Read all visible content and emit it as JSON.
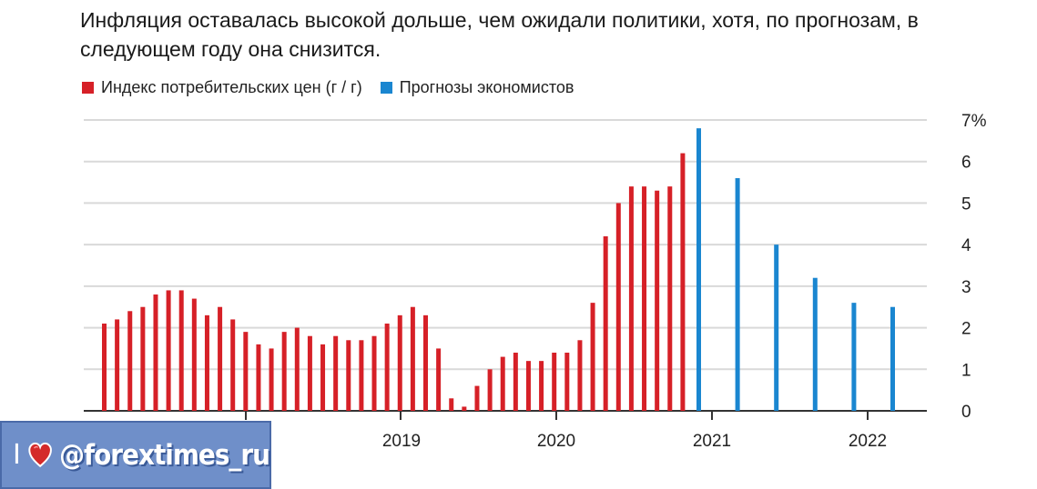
{
  "title": "Инфляция оставалась высокой дольше, чем ожидали политики, хотя, по прогнозам, в следующем году она снизится.",
  "legend": {
    "cpi": "Индекс потребительских цен (г / г)",
    "forecast": "Прогнозы экономистов"
  },
  "colors": {
    "cpi": "#d62027",
    "forecast": "#1a86d0",
    "grid": "#d9d9d9",
    "axis": "#333333"
  },
  "watermark": {
    "i": "I",
    "handle": "@forextimes_ru",
    "heart": "heart-icon"
  },
  "chart_data": {
    "type": "bar",
    "ylim": [
      0,
      7
    ],
    "yticks": [
      "0",
      "1",
      "2",
      "3",
      "4",
      "5",
      "6",
      "7%"
    ],
    "xticks": [
      "2019",
      "2020",
      "2021",
      "2022"
    ],
    "grid": true,
    "series": [
      {
        "name": "Индекс потребительских цен (г / г)",
        "values": [
          2.1,
          2.2,
          2.4,
          2.5,
          2.8,
          2.9,
          2.9,
          2.7,
          2.3,
          2.5,
          2.2,
          1.9,
          1.6,
          1.5,
          1.9,
          2.0,
          1.8,
          1.6,
          1.8,
          1.7,
          1.7,
          1.8,
          2.1,
          2.3,
          2.5,
          2.3,
          1.5,
          0.3,
          0.1,
          0.6,
          1.0,
          1.3,
          1.4,
          1.2,
          1.2,
          1.4,
          1.4,
          1.7,
          2.6,
          4.2,
          5.0,
          5.4,
          5.4,
          5.3,
          5.4,
          6.2
        ]
      },
      {
        "name": "Прогнозы экономистов",
        "values": [
          6.8,
          5.6,
          4.0,
          3.2,
          2.6,
          2.5
        ]
      }
    ]
  }
}
